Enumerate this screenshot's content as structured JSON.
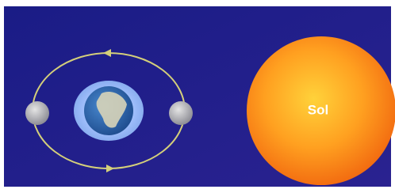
{
  "labels": {
    "sun": "Sol"
  }
}
